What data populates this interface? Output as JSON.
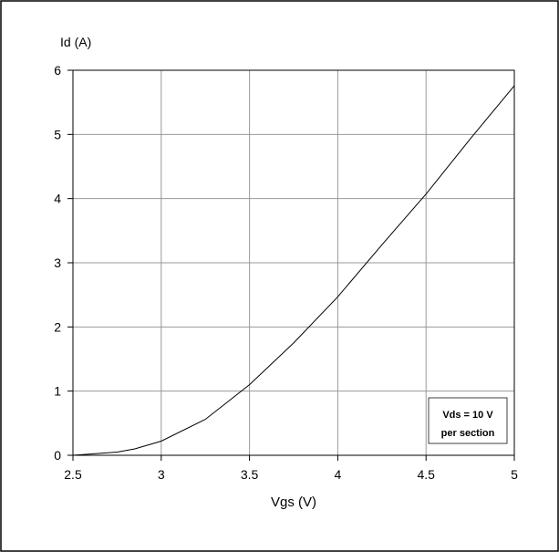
{
  "chart_data": {
    "type": "line",
    "title": "",
    "xlabel": "Vgs (V)",
    "ylabel": "Id (A)",
    "xlim": [
      2.5,
      5
    ],
    "ylim": [
      0,
      6
    ],
    "xticks": [
      2.5,
      3,
      3.5,
      4,
      4.5,
      5
    ],
    "yticks": [
      0,
      1,
      2,
      3,
      4,
      5,
      6
    ],
    "x_tick_labels": [
      "2.5",
      "3",
      "3.5",
      "4",
      "4.5",
      "5"
    ],
    "y_tick_labels": [
      "0",
      "1",
      "2",
      "3",
      "4",
      "5",
      "6"
    ],
    "grid": true,
    "annotation": [
      "Vds = 10 V",
      "per section"
    ],
    "series": [
      {
        "x": [
          2.5,
          2.6,
          2.75,
          2.85,
          3.0,
          3.25,
          3.5,
          3.75,
          4.0,
          4.25,
          4.5,
          4.75,
          5.0
        ],
        "y": [
          0.0,
          0.02,
          0.05,
          0.1,
          0.22,
          0.56,
          1.1,
          1.75,
          2.47,
          3.28,
          4.07,
          4.93,
          5.76
        ]
      }
    ],
    "colors": {
      "line": "#000000",
      "grid": "#999999",
      "axes": "#000000",
      "frame": "#000000"
    }
  }
}
